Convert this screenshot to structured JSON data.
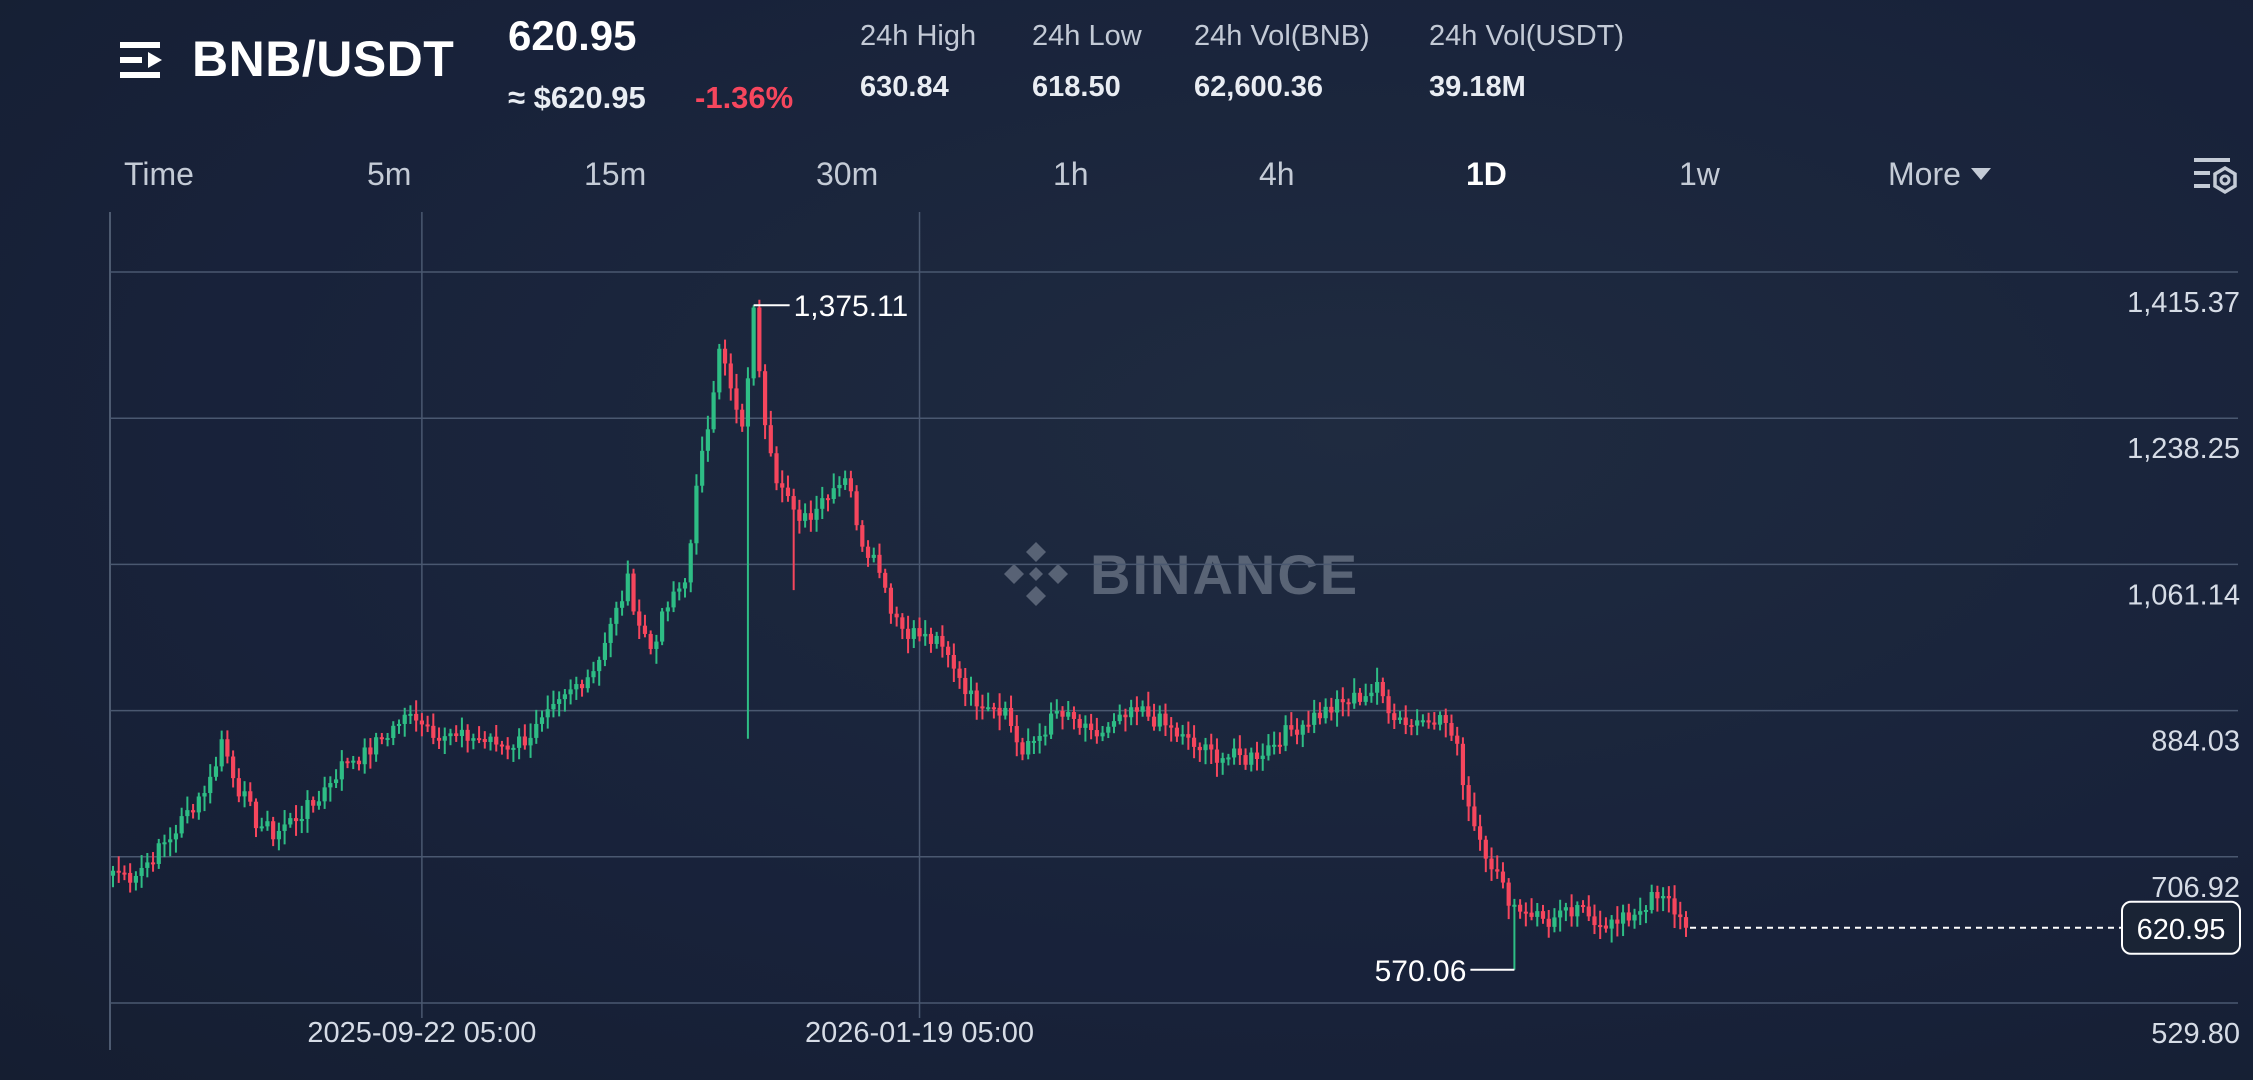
{
  "header": {
    "menu_icon": "list-menu-icon",
    "pair": "BNB/USDT",
    "price": "620.95",
    "approx_price": "≈ $620.95",
    "change": "-1.36%",
    "change_color": "#f6465d",
    "stats": [
      {
        "label": "24h High",
        "value": "630.84"
      },
      {
        "label": "24h Low",
        "value": "618.50"
      },
      {
        "label": "24h Vol(BNB)",
        "value": "62,600.36"
      },
      {
        "label": "24h Vol(USDT)",
        "value": "39.18M"
      }
    ]
  },
  "tabs": {
    "items": [
      "Time",
      "5m",
      "15m",
      "30m",
      "1h",
      "4h",
      "1D",
      "1w"
    ],
    "active": "1D",
    "more_label": "More",
    "settings_icon": "chart-settings-icon"
  },
  "watermark": {
    "text": "BINANCE",
    "icon": "binance-logo-icon"
  },
  "chart_data": {
    "type": "candlestick",
    "interval": "1D",
    "y_ticks": [
      "1,415.37",
      "1,238.25",
      "1,061.14",
      "884.03",
      "706.92",
      "529.80"
    ],
    "y_tick_values": [
      1415.37,
      1238.25,
      1061.14,
      884.03,
      706.92,
      529.8
    ],
    "x_ticks": [
      "2025-09-22 05:00",
      "2026-01-19 05:00"
    ],
    "max_label": "1,375.11",
    "max_value": 1375.11,
    "min_label": "570.06",
    "min_value": 570.06,
    "last_price_label": "620.95",
    "last_price": 620.95,
    "up_color": "#2ebd85",
    "down_color": "#f6465d",
    "grid": true,
    "waypoints_close": [
      [
        0,
        690
      ],
      [
        3,
        684
      ],
      [
        6,
        700
      ],
      [
        10,
        730
      ],
      [
        14,
        770
      ],
      [
        17,
        800
      ],
      [
        19,
        848
      ],
      [
        22,
        790
      ],
      [
        25,
        750
      ],
      [
        28,
        735
      ],
      [
        31,
        750
      ],
      [
        35,
        770
      ],
      [
        38,
        800
      ],
      [
        41,
        825
      ],
      [
        44,
        830
      ],
      [
        47,
        850
      ],
      [
        50,
        870
      ],
      [
        53,
        880
      ],
      [
        56,
        860
      ],
      [
        60,
        850
      ],
      [
        63,
        852
      ],
      [
        66,
        845
      ],
      [
        69,
        842
      ],
      [
        72,
        850
      ],
      [
        75,
        868
      ],
      [
        78,
        890
      ],
      [
        81,
        915
      ],
      [
        84,
        935
      ],
      [
        87,
        985
      ],
      [
        90,
        1040
      ],
      [
        92,
        990
      ],
      [
        94,
        960
      ],
      [
        97,
        1010
      ],
      [
        100,
        1040
      ],
      [
        102,
        1150
      ],
      [
        104,
        1230
      ],
      [
        106,
        1330
      ],
      [
        108,
        1270
      ],
      [
        110,
        1220
      ],
      [
        112,
        1365
      ],
      [
        114,
        1240
      ],
      [
        116,
        1170
      ],
      [
        119,
        1120
      ],
      [
        122,
        1125
      ],
      [
        125,
        1150
      ],
      [
        128,
        1170
      ],
      [
        131,
        1090
      ],
      [
        134,
        1060
      ],
      [
        136,
        1010
      ],
      [
        138,
        985
      ],
      [
        141,
        975
      ],
      [
        144,
        965
      ],
      [
        147,
        940
      ],
      [
        150,
        900
      ],
      [
        153,
        895
      ],
      [
        156,
        885
      ],
      [
        159,
        830
      ],
      [
        162,
        855
      ],
      [
        165,
        880
      ],
      [
        168,
        870
      ],
      [
        171,
        852
      ],
      [
        174,
        860
      ],
      [
        177,
        875
      ],
      [
        180,
        882
      ],
      [
        183,
        870
      ],
      [
        186,
        855
      ],
      [
        189,
        840
      ],
      [
        192,
        832
      ],
      [
        195,
        828
      ],
      [
        198,
        826
      ],
      [
        201,
        836
      ],
      [
        204,
        852
      ],
      [
        207,
        865
      ],
      [
        210,
        878
      ],
      [
        213,
        886
      ],
      [
        216,
        895
      ],
      [
        219,
        905
      ],
      [
        221,
        910
      ],
      [
        224,
        880
      ],
      [
        227,
        868
      ],
      [
        230,
        880
      ],
      [
        233,
        870
      ],
      [
        235,
        835
      ],
      [
        237,
        770
      ],
      [
        239,
        730
      ],
      [
        241,
        700
      ],
      [
        243,
        668
      ],
      [
        245,
        648
      ],
      [
        248,
        640
      ],
      [
        251,
        628
      ],
      [
        254,
        636
      ],
      [
        257,
        640
      ],
      [
        260,
        630
      ],
      [
        263,
        624
      ],
      [
        266,
        640
      ],
      [
        269,
        655
      ],
      [
        272,
        652
      ],
      [
        274,
        632
      ],
      [
        275,
        620.95
      ]
    ]
  }
}
